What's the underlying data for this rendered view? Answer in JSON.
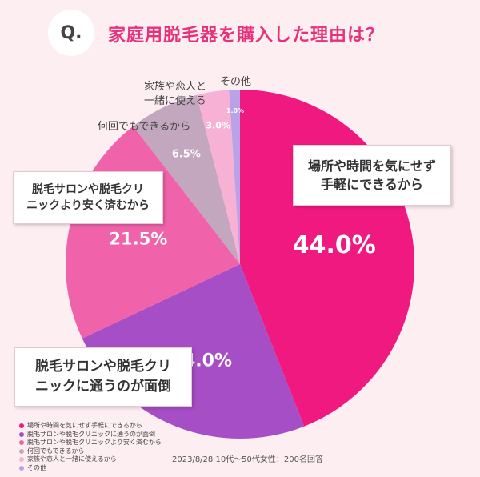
{
  "header": {
    "badge": "Q.",
    "title": "家庭用脱毛器を購入した理由は？"
  },
  "chart_data": {
    "type": "pie",
    "title": "家庭用脱毛器を購入した理由は？",
    "slices": [
      {
        "label": "場所や時間を気にせず手軽にできるから",
        "value": 44.0,
        "display": "44.0%",
        "color": "#f0197f"
      },
      {
        "label": "脱毛サロンや脱毛クリニックに通うのが面倒",
        "value": 24.0,
        "display": "24.0%",
        "color": "#a64ec5"
      },
      {
        "label": "脱毛サロンや脱毛クリニックより安く済むから",
        "value": 21.5,
        "display": "21.5%",
        "color": "#f063aa"
      },
      {
        "label": "何回でもできるから",
        "value": 6.5,
        "display": "6.5%",
        "color": "#c2a7be"
      },
      {
        "label": "家族や恋人と一緒に使えるから",
        "value": 3.0,
        "display": "3.0%",
        "color": "#f7b1d4"
      },
      {
        "label": "その他",
        "value": 1.0,
        "display": "1.0%",
        "color": "#b9a3e8"
      }
    ],
    "legend_position": "bottom-left"
  },
  "callouts": {
    "c0": "場所や時間を気にせず\n手軽にできるから",
    "c1": "脱毛サロンや脱毛クリ\nニックに通うのが面倒",
    "c2": "脱毛サロンや脱毛クリ\nニックより安く済むから"
  },
  "labels": {
    "l3": "何回でもできるから",
    "l4": "家族や恋人と\n一緒に使える",
    "l5": "その他"
  },
  "legend": [
    "場所や時間を気にせず手軽にできるから",
    "脱毛サロンや脱毛クリニックに通うのが面倒",
    "脱毛サロンや脱毛クリニックより安く済むから",
    "何回でもできるから",
    "家族や恋人と一緒に使えるから",
    "その他"
  ],
  "source": "2023/8/28 10代〜50代女性：200名回答"
}
